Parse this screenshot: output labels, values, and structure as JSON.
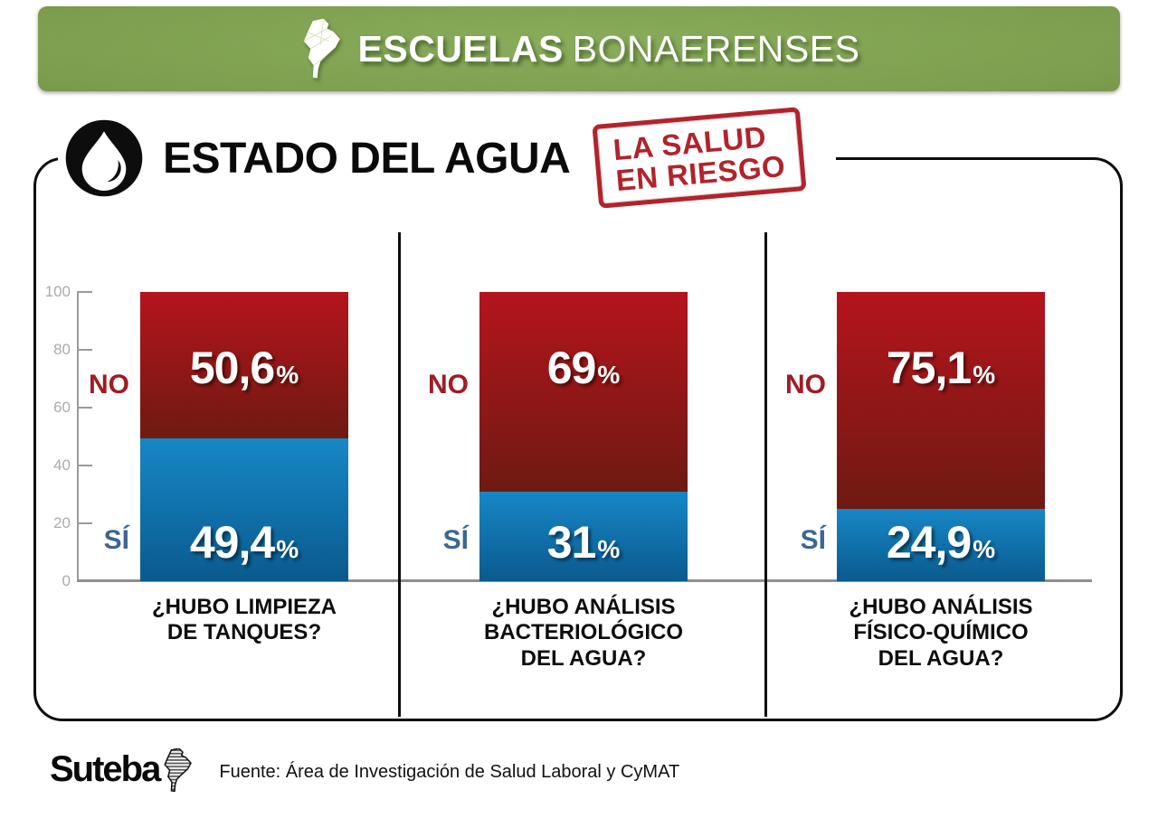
{
  "banner": {
    "title_bold": "ESCUELAS",
    "title_regular": "BONAERENSES"
  },
  "title": {
    "text": "ESTADO DEL AGUA",
    "stamp_line1": "LA SALUD",
    "stamp_line2": "EN RIESGO"
  },
  "axis": {
    "ticks": [
      "100",
      "80",
      "60",
      "40",
      "20",
      "0"
    ]
  },
  "percent_sign": "%",
  "charts": [
    {
      "question": "¿HUBO LIMPIEZA\nDE TANQUES?",
      "no_label": "NO",
      "no_value": 50.6,
      "no_display": "50,6",
      "si_label": "SÍ",
      "si_value": 49.4,
      "si_display": "49,4"
    },
    {
      "question": "¿HUBO ANÁLISIS\nBACTERIOLÓGICO\nDEL AGUA?",
      "no_label": "NO",
      "no_value": 69,
      "no_display": "69",
      "si_label": "SÍ",
      "si_value": 31,
      "si_display": "31"
    },
    {
      "question": "¿HUBO ANÁLISIS\nFÍSICO-QUÍMICO\nDEL AGUA?",
      "no_label": "NO",
      "no_value": 75.1,
      "no_display": "75,1",
      "si_label": "SÍ",
      "si_value": 24.9,
      "si_display": "24,9"
    }
  ],
  "footer": {
    "logo": "Suteba",
    "source": "Fuente: Área de Investigación de Salud Laboral y CyMAT"
  },
  "colors": {
    "banner-light": "#8cb15e",
    "banner-mid": "#7d9f4e",
    "banner-dark": "#5e7c38",
    "red-top": "#b5141c",
    "red-bottom": "#6e1a12",
    "blue-top": "#1787c6",
    "blue-bottom": "#0a5a8e",
    "no-color": "#a01c24",
    "si-color": "#3b6695",
    "stamp-red": "#b2232b",
    "axis-gray": "#9a9a9a",
    "tick-text": "#ababab"
  },
  "chart_data": {
    "type": "bar",
    "stacked": true,
    "title": "Estado del agua",
    "subtitle": "La salud en riesgo",
    "categories": [
      "¿Hubo limpieza de tanques?",
      "¿Hubo análisis bacteriológico del agua?",
      "¿Hubo análisis físico-químico del agua?"
    ],
    "series": [
      {
        "name": "NO",
        "values": [
          50.6,
          69,
          75.1
        ],
        "color": "#b5141c"
      },
      {
        "name": "SÍ",
        "values": [
          49.4,
          31,
          24.9
        ],
        "color": "#1787c6"
      }
    ],
    "ylim": [
      0,
      100
    ],
    "yticks": [
      0,
      20,
      40,
      60,
      80,
      100
    ],
    "grid": false,
    "legend_position": "left-of-bars",
    "source": "Fuente: Área de Investigación de Salud Laboral y CyMAT"
  }
}
